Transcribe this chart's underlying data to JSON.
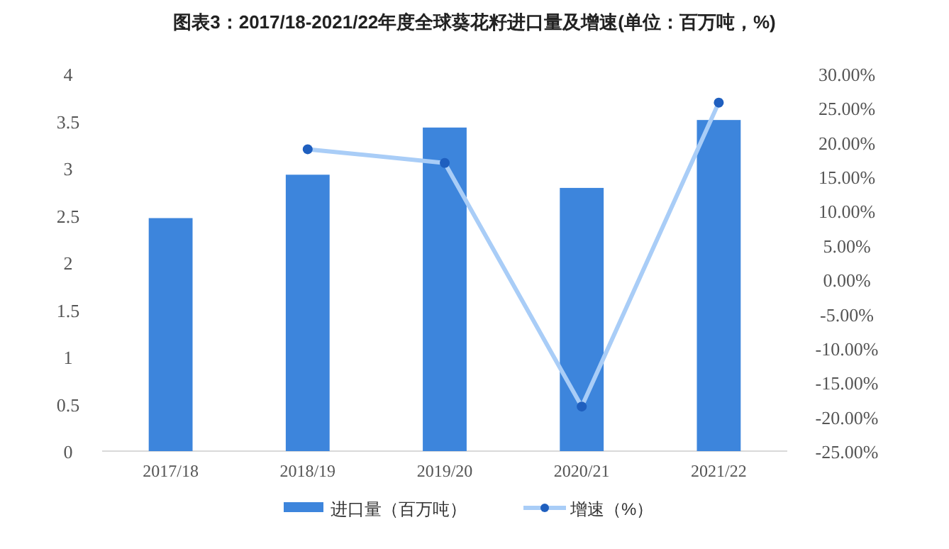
{
  "chart_data": {
    "type": "bar",
    "title": "图表3：2017/18-2021/22年度全球葵花籽进口量及增速(单位：百万吨，%)",
    "categories": [
      "2017/18",
      "2018/19",
      "2019/20",
      "2020/21",
      "2021/22"
    ],
    "series": [
      {
        "name": "进口量（百万吨）",
        "color": "#3d85dc",
        "values": [
          2.47,
          2.93,
          3.43,
          2.79,
          3.51
        ]
      },
      {
        "name": "增速（%）",
        "type": "line",
        "axis": "y2",
        "color": "#a9cdf7",
        "marker": "circle",
        "values": [
          null,
          19.0,
          17.0,
          -18.5,
          25.8
        ]
      }
    ],
    "ylim": [
      0,
      4
    ],
    "yticks": [
      0,
      0.5,
      1,
      1.5,
      2,
      2.5,
      3,
      3.5,
      4
    ],
    "y2lim": [
      -25,
      30
    ],
    "y2ticks": [
      {
        "value": -25,
        "label": "-25.00%"
      },
      {
        "value": -20,
        "label": "-20.00%"
      },
      {
        "value": -15,
        "label": "-15.00%"
      },
      {
        "value": -10,
        "label": "-10.00%"
      },
      {
        "value": -5,
        "label": "-5.00%"
      },
      {
        "value": 0,
        "label": "0.00%"
      },
      {
        "value": 5,
        "label": "5.00%"
      },
      {
        "value": 10,
        "label": "10.00%"
      },
      {
        "value": 15,
        "label": "15.00%"
      },
      {
        "value": 20,
        "label": "20.00%"
      },
      {
        "value": 25,
        "label": "25.00%"
      },
      {
        "value": 30,
        "label": "30.00%"
      }
    ],
    "grid": false,
    "legend": "bottom"
  }
}
